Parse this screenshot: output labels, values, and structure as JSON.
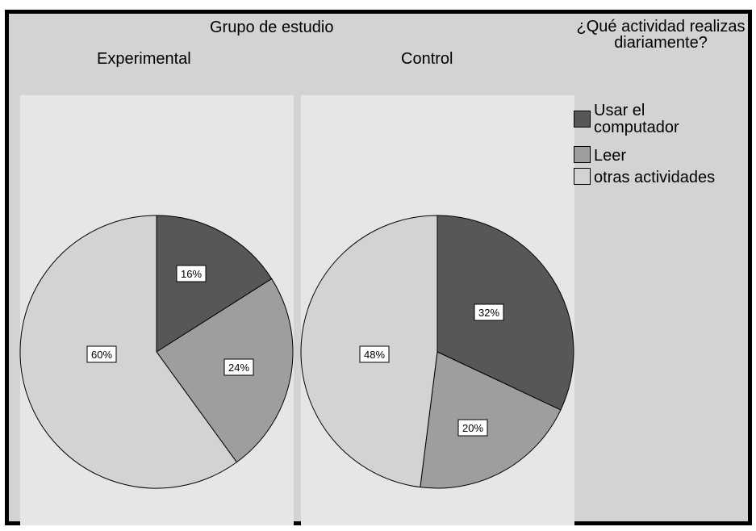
{
  "chart_data": {
    "type": "pie",
    "facet_title": "Grupo de estudio",
    "legend_title": "¿Qué actividad realizas diariamente?",
    "legend": [
      {
        "label": "Usar el computador",
        "color": "#575757"
      },
      {
        "label": "Leer",
        "color": "#9e9e9e"
      },
      {
        "label": "otras actividades",
        "color": "#d3d3d3"
      }
    ],
    "panels": [
      {
        "title": "Experimental",
        "labels": [
          "16%",
          "24%",
          "60%"
        ],
        "values": [
          16,
          24,
          60
        ]
      },
      {
        "title": "Control",
        "labels": [
          "32%",
          "20%",
          "48%"
        ],
        "values": [
          32,
          20,
          48
        ]
      }
    ]
  },
  "colors": {
    "frame": "#000000",
    "background": "#d3d3d3",
    "panel_background": "#e6e6e6"
  }
}
